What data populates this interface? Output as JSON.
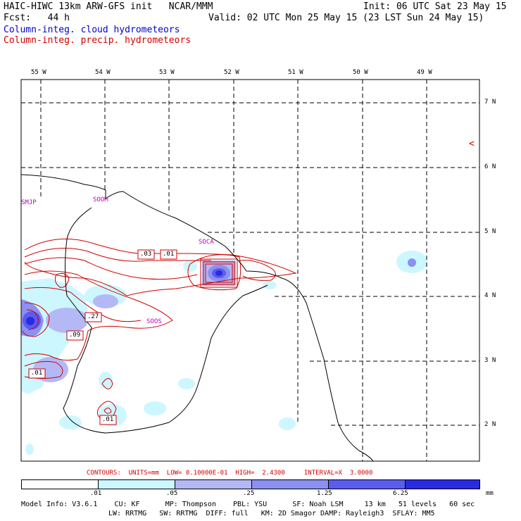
{
  "header": {
    "title": "HAIC-HIWC 13km ARW-GFS init   NCAR/MMM",
    "init": "Init: 06 UTC Sat 23 May 15",
    "fcst": "Fcst:   44 h",
    "valid": "Valid: 02 UTC Mon 25 May 15 (23 LST Sun 24 May 15)",
    "field_cloud": "Column-integ. cloud hydrometeors",
    "field_precip": "Column-integ. precip. hydrometeors"
  },
  "colors": {
    "cloud_text": "#0000d0",
    "precip_contour": "#d00000",
    "station_label": "#c000c0",
    "shade_1": "#ccf7ff",
    "shade_2": "#b4b8f5",
    "shade_3": "#8c90f0",
    "shade_4": "#5a5cf0",
    "shade_5": "#2a2ae0"
  },
  "map": {
    "lon_labels": [
      "55 W",
      "54 W",
      "53 W",
      "52 W",
      "51 W",
      "50 W",
      "49 W"
    ],
    "lat_labels": [
      "7 N",
      "6 N",
      "5 N",
      "4 N",
      "3 N",
      "2 N"
    ],
    "stations": [
      "SMJP",
      "SOOM",
      "SOCA",
      "SOOS"
    ],
    "contour_labels": [
      ".03",
      ".01",
      ".27",
      ".09",
      ".01",
      ".01"
    ],
    "marker": "<"
  },
  "footer": {
    "contours_line": "CONTOURS:  UNITS=mm  LOW= 0.10000E-01  HIGH=  2.4300     INTERVAL=X  3.0000",
    "scale_labels": [
      ".01",
      ".05",
      ".25",
      "1.25",
      "6.25"
    ],
    "units": "mm",
    "model_line1": "Model Info: V3.6.1    CU: KF      MP: Thompson    PBL: YSU      SF: Noah LSM     13 km   51 levels   60 sec",
    "model_line2": "LW: RRTMG   SW: RRTMG  DIFF: full   KM: 2D Smagor DAMP: Rayleigh3  SFLAY: MM5"
  }
}
